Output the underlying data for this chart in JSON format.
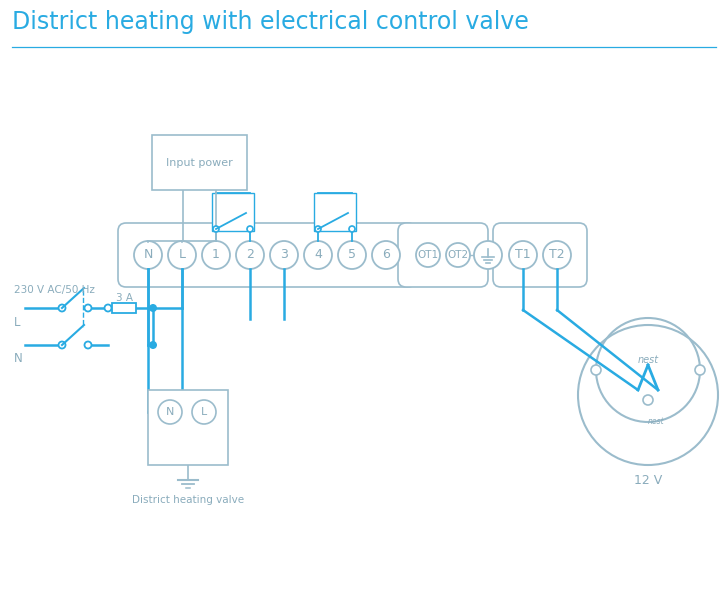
{
  "title": "District heating with electrical control valve",
  "title_color": "#29abe2",
  "bg_color": "#ffffff",
  "line_color": "#29abe2",
  "box_color": "#9bbccc",
  "text_color": "#8aacbc",
  "label_230v": "230 V AC/50 Hz",
  "label_l": "L",
  "label_n": "N",
  "label_3a": "3 A",
  "label_input_power": "Input power",
  "label_valve": "District heating valve",
  "label_12v": "12 V",
  "figw": 7.28,
  "figh": 5.94,
  "dpi": 100
}
